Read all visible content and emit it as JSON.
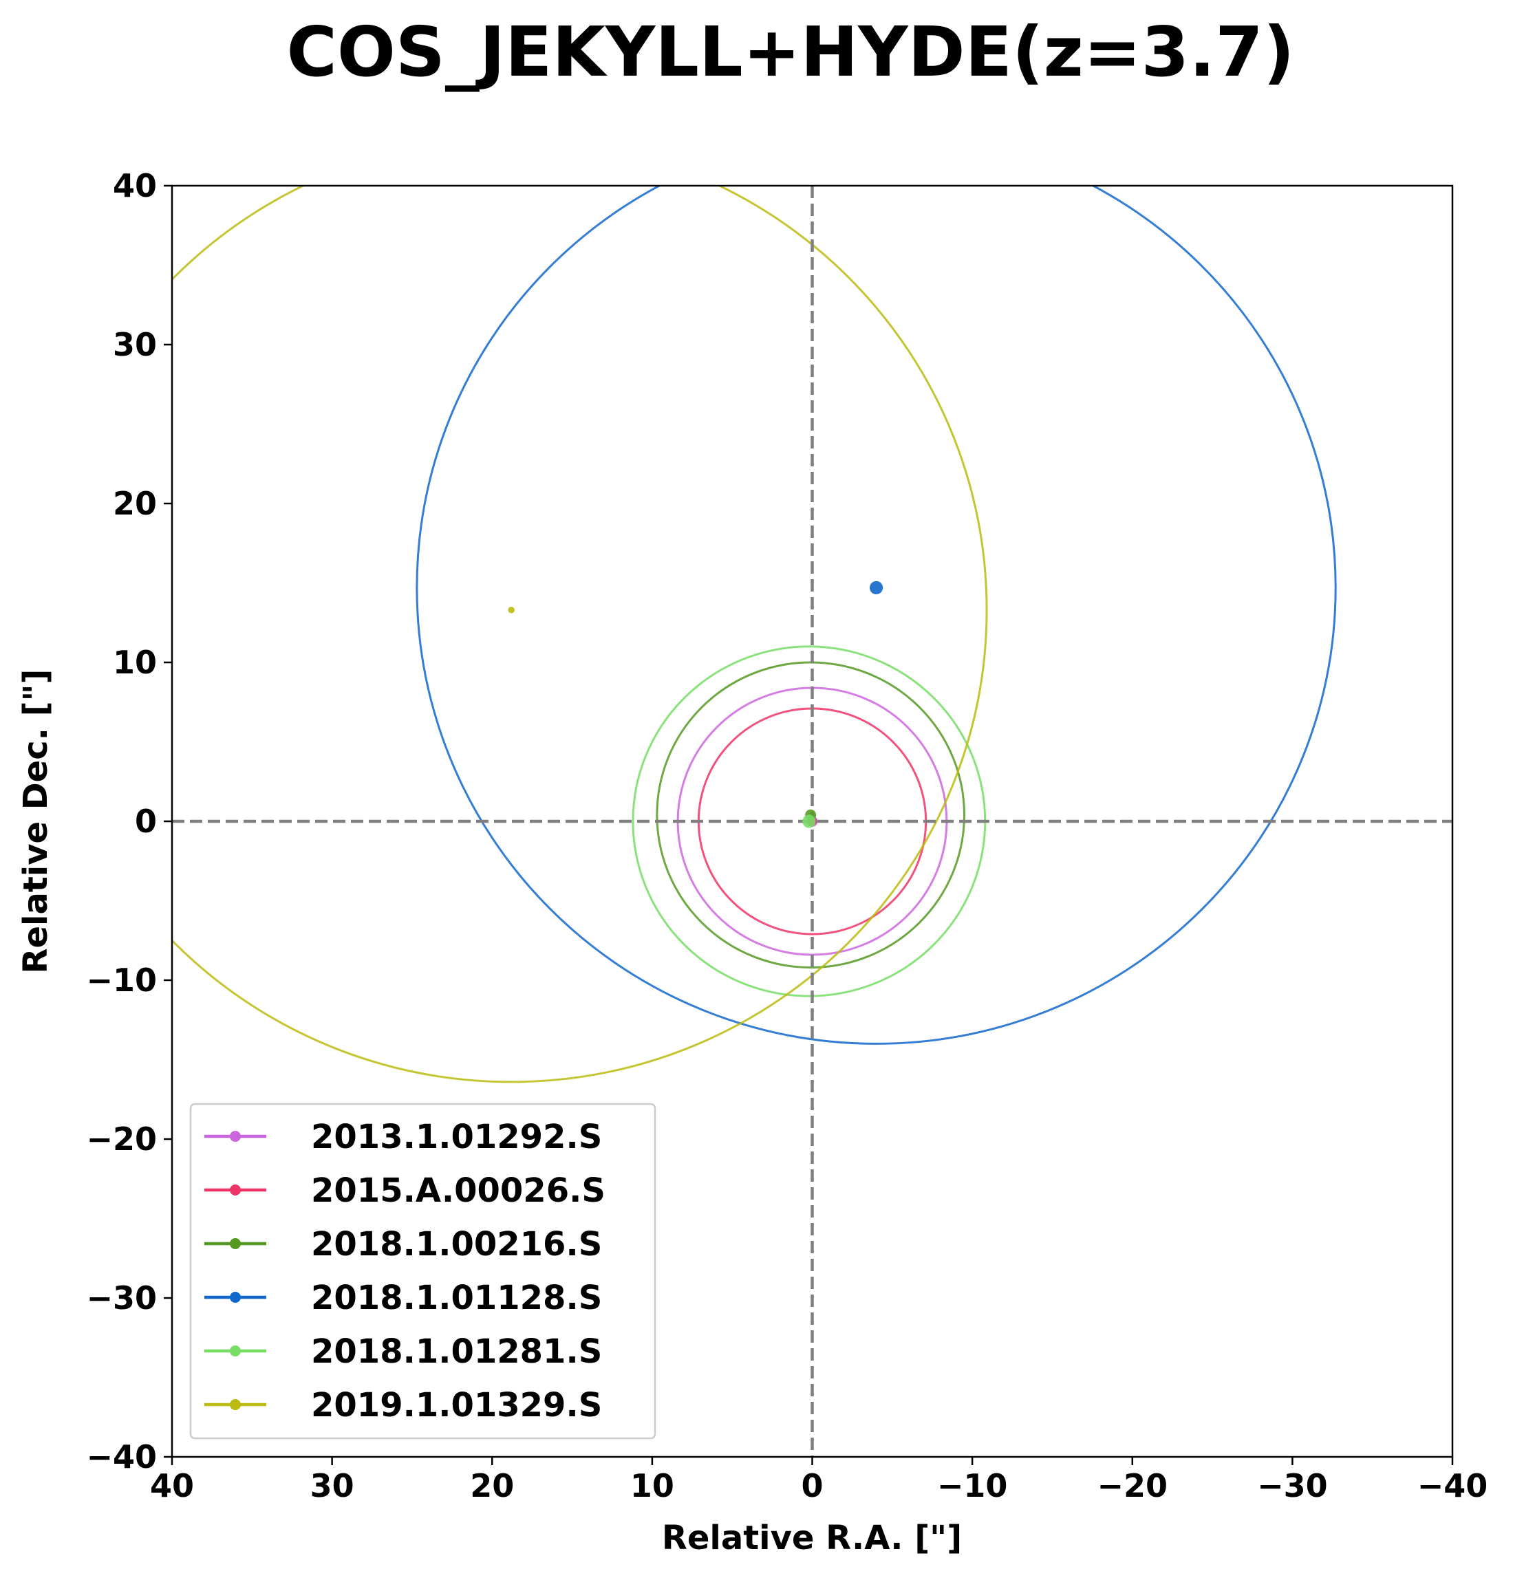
{
  "chart_data": {
    "type": "scatter",
    "title": "COS_JEKYLL+HYDE(z=3.7)",
    "xlabel": "Relative R.A. [\"]",
    "ylabel": "Relative Dec. [\"]",
    "xlim": [
      40,
      -40
    ],
    "ylim": [
      -40,
      40
    ],
    "x_inverted": true,
    "xticks": [
      40,
      30,
      20,
      10,
      0,
      -10,
      -20,
      -30,
      -40
    ],
    "yticks": [
      40,
      30,
      20,
      10,
      0,
      -10,
      -20,
      -30,
      -40
    ],
    "xtick_labels": [
      "40",
      "30",
      "20",
      "10",
      "0",
      "−10",
      "−20",
      "−30",
      "−40"
    ],
    "ytick_labels": [
      "40",
      "30",
      "20",
      "10",
      "0",
      "−10",
      "−20",
      "−30",
      "−40"
    ],
    "grid": false,
    "reference_lines": {
      "x": 0,
      "y": 0,
      "style": "dashed",
      "color": "#808080"
    },
    "legend_position": "lower-left",
    "series": [
      {
        "name": "2013.1.01292.S",
        "color": "#cc66dd",
        "center": [
          0.0,
          0.0
        ],
        "radius": 8.4,
        "marker_size": 5
      },
      {
        "name": "2015.A.00026.S",
        "color": "#ee3366",
        "center": [
          0.0,
          0.0
        ],
        "radius": 7.1,
        "marker_size": 4
      },
      {
        "name": "2018.1.00216.S",
        "color": "#559922",
        "center": [
          0.1,
          0.4
        ],
        "radius": 9.6,
        "marker_size": 5
      },
      {
        "name": "2018.1.01128.S",
        "color": "#1166cc",
        "center": [
          -4.0,
          14.7
        ],
        "radius": 28.7,
        "marker_size": 6
      },
      {
        "name": "2018.1.01281.S",
        "color": "#77dd66",
        "center": [
          0.2,
          0.0
        ],
        "radius": 11.0,
        "marker_size": 6
      },
      {
        "name": "2019.1.01329.S",
        "color": "#bbbb11",
        "center": [
          18.8,
          13.3
        ],
        "radius": 29.7,
        "marker_size": 3
      }
    ]
  }
}
